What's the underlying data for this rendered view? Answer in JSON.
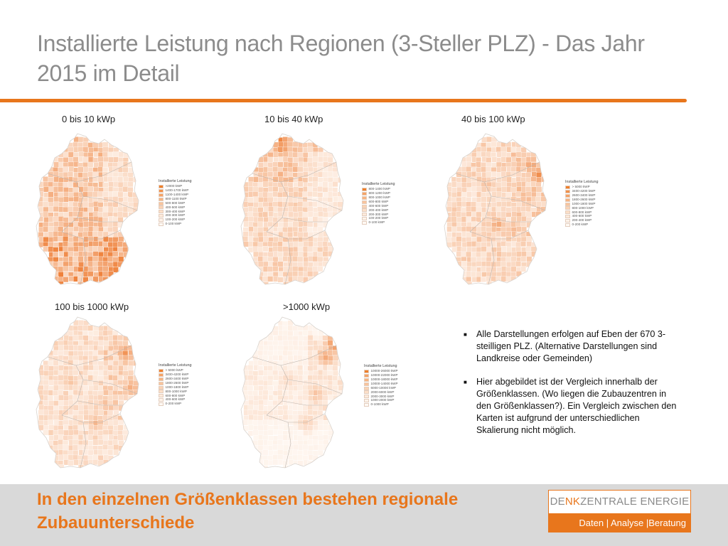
{
  "slide": {
    "title": "Installierte Leistung nach Regionen (3-Steller PLZ) - Das Jahr 2015 im Detail"
  },
  "colors": {
    "accent": "#e8761c",
    "title_gray": "#8c8c8c",
    "footer_band": "#d9d9d9"
  },
  "maps": [
    {
      "label": "0 bis 10 kWp",
      "legend_title": "Installierte Leistung",
      "legend": [
        ">2000 kWP",
        "1400-1700 kWP",
        "1100-1400 kWP",
        "800-1100 kWP",
        "500-800 kWP",
        "400-500 kWP",
        "300-400 kWP",
        "200-300 kWP",
        "100-200 kWP",
        "0-100 kWP"
      ],
      "shading": {
        "north": 0.45,
        "center": 0.45,
        "east": 0.22,
        "south": 0.7,
        "hotspot": 0.95
      }
    },
    {
      "label": "10 bis 40 kWp",
      "legend_title": "Installierte Leistung",
      "legend": [
        "800-1400 kWP",
        "800-1200 kWP",
        "800-1000 kWP",
        "600-800 kWP",
        "400-600 kWP",
        "200-400 kWP",
        "200-300 kWP",
        "100-200 kWP",
        "0-100 kWP"
      ],
      "shading": {
        "north": 0.42,
        "center": 0.28,
        "east": 0.12,
        "south": 0.3,
        "hotspot": 0.9
      }
    },
    {
      "label": "40  bis 100 kWp",
      "legend_title": "Installierte Leistung",
      "legend": [
        "> 5000 kWP",
        "3400-4200 kWP",
        "2600-3400 kWP",
        "1800-2600 kWP",
        "1000-1800 kWP",
        "800-1000 kWP",
        "600-800 kWP",
        "400-600 kWP",
        "200-400 kWP",
        "0-200 kWP"
      ],
      "shading": {
        "north": 0.3,
        "center": 0.28,
        "east": 0.4,
        "south": 0.3,
        "hotspot": 0.9
      }
    },
    {
      "label": "100  bis 1000 kWp",
      "legend_title": "Installierte Leistung",
      "legend": [
        "> 5000 kWP",
        "3400-4200 kWP",
        "2600-3400 kWP",
        "1800-2600 kWP",
        "1000-1800 kWP",
        "800-1000 kWP",
        "600-800 kWP",
        "400-600 kWP",
        "0-200 kWP"
      ],
      "shading": {
        "north": 0.25,
        "center": 0.24,
        "east": 0.36,
        "south": 0.24,
        "hotspot": 0.85
      }
    },
    {
      "label": ">1000 kWp",
      "legend_title": "Installierte Leistung",
      "legend": [
        "10000-26000 kWP",
        "10000-22000 kWP",
        "10000-18000 kWP",
        "10000-14000 kWP",
        "6000-10000 kWP",
        "2000-6000 kWP",
        "2000-3000 kWP",
        "1000-2000 kWP",
        "0-1000 kWP"
      ],
      "shading": {
        "north": 0.06,
        "center": 0.12,
        "east": 0.2,
        "south": 0.04,
        "hotspot": 0.85
      }
    }
  ],
  "legend_swatches": [
    "#ee7f2b",
    "#f2914a",
    "#f5a366",
    "#f7b482",
    "#f9c49c",
    "#fbd3b4",
    "#fcdfc8",
    "#fdeadb",
    "#fef3ea",
    "#fffaf5"
  ],
  "notes": [
    "Alle Darstellungen erfolgen auf Eben der  670 3-steilligen PLZ. (Alternative Darstellungen sind Landkreise oder Gemeinden)",
    "Hier abgebildet ist der Vergleich innerhalb der Größenklassen. (Wo liegen die Zubauzentren in den Größenklassen?). Ein Vergleich zwischen den Karten ist aufgrund der unterschiedlichen Skalierung nicht möglich."
  ],
  "footer": {
    "headline": "In den einzelnen Größenklassen bestehen regionale Zubauunterschiede"
  },
  "logo": {
    "name_part1": "DE",
    "name_part2": "NK",
    "name_part3": "ZENTRALE ENERGIE",
    "tagline": "Daten | Analyse |Beratung"
  }
}
